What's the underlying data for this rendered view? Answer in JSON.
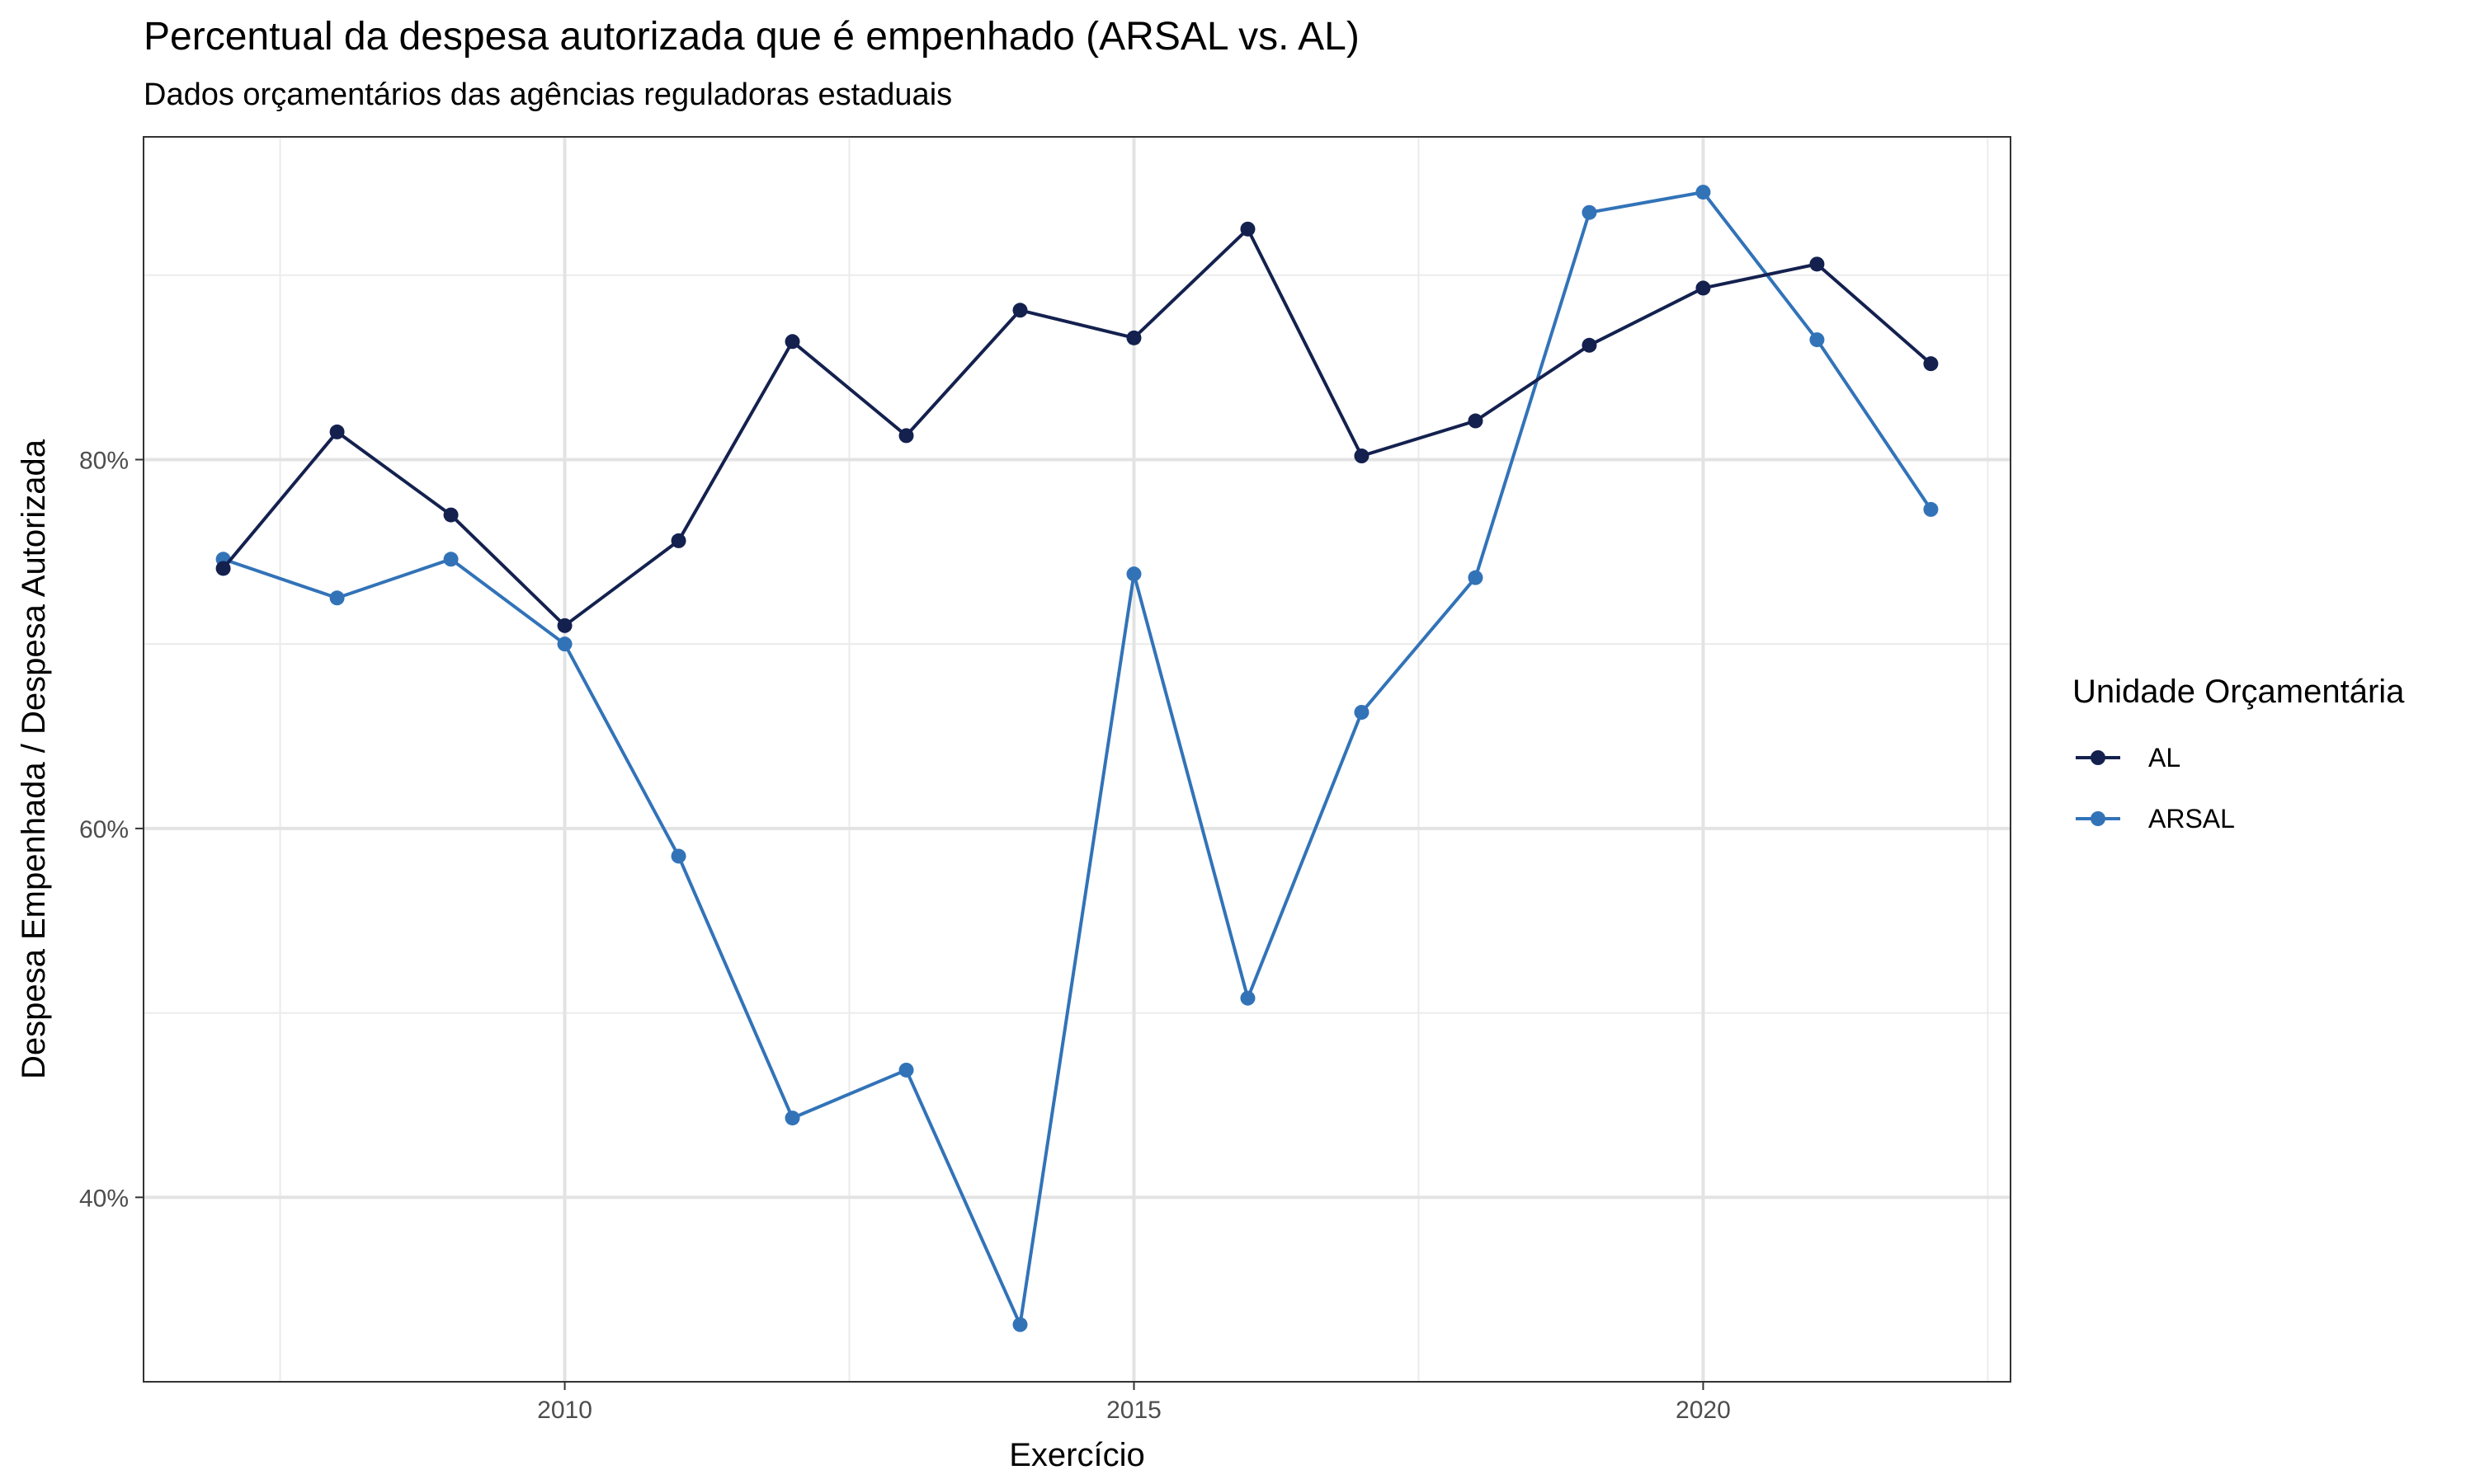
{
  "chart_data": {
    "type": "line",
    "title": "Percentual da despesa autorizada que é empenhado (ARSAL vs. AL)",
    "subtitle": "Dados orçamentários das agências reguladoras estaduais",
    "xlabel": "Exercício",
    "ylabel": "Despesa Empenhada / Despesa Autorizada",
    "x": [
      2007,
      2008,
      2009,
      2010,
      2011,
      2012,
      2013,
      2014,
      2015,
      2016,
      2017,
      2018,
      2019,
      2020,
      2021,
      2022
    ],
    "xlim": [
      2006.3,
      2022.7
    ],
    "ylim": [
      0.3,
      0.975
    ],
    "x_ticks": [
      2010,
      2015,
      2020
    ],
    "x_tick_labels": [
      "2010",
      "2015",
      "2020"
    ],
    "y_ticks": [
      0.4,
      0.6,
      0.8
    ],
    "y_tick_labels": [
      "40%",
      "60%",
      "80%"
    ],
    "grid": true,
    "legend_title": "Unidade Orçamentária",
    "legend_position": "right",
    "series": [
      {
        "name": "AL",
        "color": "#14214f",
        "values": [
          0.741,
          0.815,
          0.77,
          0.71,
          0.756,
          0.864,
          0.813,
          0.881,
          0.866,
          0.925,
          0.802,
          0.821,
          0.862,
          0.893,
          0.906,
          0.852
        ]
      },
      {
        "name": "ARSAL",
        "color": "#3273b8",
        "values": [
          0.746,
          0.725,
          0.746,
          0.7,
          0.585,
          0.443,
          0.469,
          0.331,
          0.738,
          0.508,
          0.663,
          0.736,
          0.934,
          0.945,
          0.865,
          0.773
        ]
      }
    ]
  }
}
